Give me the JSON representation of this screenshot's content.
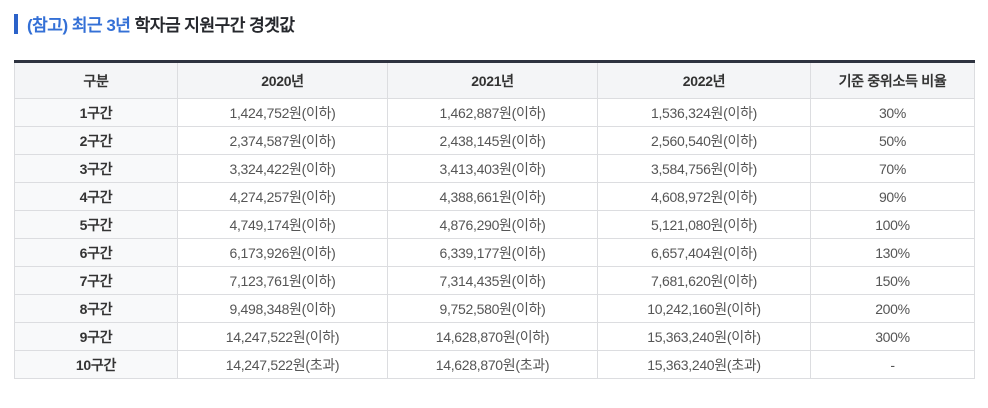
{
  "title": {
    "highlight": "(참고) 최근 3년",
    "rest": " 학자금 지원구간 경곗값"
  },
  "colors": {
    "accent_blue": "#3470d6",
    "bar_blue": "#2b62c9",
    "title_dark": "#26282d",
    "table_top_border": "#2e3340",
    "border": "#dcdde0",
    "outer_border": "#c9cacc",
    "header_bg": "#f4f5f7",
    "label_bg": "#f8f9fa",
    "text_dark": "#333333",
    "text_body": "#555555"
  },
  "table": {
    "headers": [
      "구분",
      "2020년",
      "2021년",
      "2022년",
      "기준 중위소득 비율"
    ],
    "rows": [
      {
        "label": "1구간",
        "y2020": "1,424,752원(이하)",
        "y2021": "1,462,887원(이하)",
        "y2022": "1,536,324원(이하)",
        "ratio": "30%"
      },
      {
        "label": "2구간",
        "y2020": "2,374,587원(이하)",
        "y2021": "2,438,145원(이하)",
        "y2022": "2,560,540원(이하)",
        "ratio": "50%"
      },
      {
        "label": "3구간",
        "y2020": "3,324,422원(이하)",
        "y2021": "3,413,403원(이하)",
        "y2022": "3,584,756원(이하)",
        "ratio": "70%"
      },
      {
        "label": "4구간",
        "y2020": "4,274,257원(이하)",
        "y2021": "4,388,661원(이하)",
        "y2022": "4,608,972원(이하)",
        "ratio": "90%"
      },
      {
        "label": "5구간",
        "y2020": "4,749,174원(이하)",
        "y2021": "4,876,290원(이하)",
        "y2022": "5,121,080원(이하)",
        "ratio": "100%"
      },
      {
        "label": "6구간",
        "y2020": "6,173,926원(이하)",
        "y2021": "6,339,177원(이하)",
        "y2022": "6,657,404원(이하)",
        "ratio": "130%"
      },
      {
        "label": "7구간",
        "y2020": "7,123,761원(이하)",
        "y2021": "7,314,435원(이하)",
        "y2022": "7,681,620원(이하)",
        "ratio": "150%"
      },
      {
        "label": "8구간",
        "y2020": "9,498,348원(이하)",
        "y2021": "9,752,580원(이하)",
        "y2022": "10,242,160원(이하)",
        "ratio": "200%"
      },
      {
        "label": "9구간",
        "y2020": "14,247,522원(이하)",
        "y2021": "14,628,870원(이하)",
        "y2022": "15,363,240원(이하)",
        "ratio": "300%"
      },
      {
        "label": "10구간",
        "y2020": "14,247,522원(초과)",
        "y2021": "14,628,870원(초과)",
        "y2022": "15,363,240원(초과)",
        "ratio": "-"
      }
    ]
  }
}
